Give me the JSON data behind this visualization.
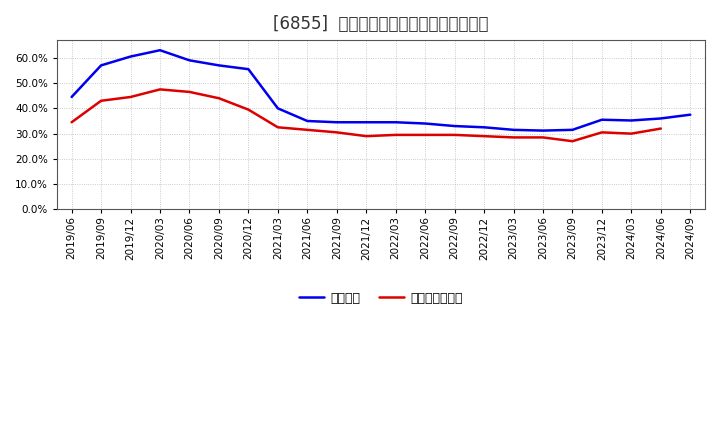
{
  "title": "[6855]  固定比率、固定長期適合率の推移",
  "series_order": [
    "固定比率",
    "固定長期適合率"
  ],
  "series": {
    "固定比率": {
      "color": "#0000EE",
      "dates": [
        "2019/06",
        "2019/09",
        "2019/12",
        "2020/03",
        "2020/06",
        "2020/09",
        "2020/12",
        "2021/03",
        "2021/06",
        "2021/09",
        "2021/12",
        "2022/03",
        "2022/06",
        "2022/09",
        "2022/12",
        "2023/03",
        "2023/06",
        "2023/09",
        "2023/12",
        "2024/03",
        "2024/06",
        "2024/09"
      ],
      "values": [
        44.5,
        57.0,
        60.5,
        63.0,
        59.0,
        57.0,
        55.5,
        40.0,
        35.0,
        34.5,
        34.5,
        34.5,
        34.0,
        33.0,
        32.5,
        31.5,
        31.2,
        31.5,
        35.5,
        35.2,
        36.0,
        37.5
      ]
    },
    "固定長期適合率": {
      "color": "#DD0000",
      "dates": [
        "2019/06",
        "2019/09",
        "2019/12",
        "2020/03",
        "2020/06",
        "2020/09",
        "2020/12",
        "2021/03",
        "2021/06",
        "2021/09",
        "2021/12",
        "2022/03",
        "2022/06",
        "2022/09",
        "2022/12",
        "2023/03",
        "2023/06",
        "2023/09",
        "2023/12",
        "2024/03",
        "2024/06"
      ],
      "values": [
        34.5,
        43.0,
        44.5,
        47.5,
        46.5,
        44.0,
        39.5,
        32.5,
        31.5,
        30.5,
        29.0,
        29.5,
        29.5,
        29.5,
        29.0,
        28.5,
        28.5,
        27.0,
        30.5,
        30.0,
        32.0
      ]
    }
  },
  "yticks": [
    0.0,
    10.0,
    20.0,
    30.0,
    40.0,
    50.0,
    60.0
  ],
  "ylim": [
    0.0,
    67.0
  ],
  "xtick_labels": [
    "2019/06",
    "2019/09",
    "2019/12",
    "2020/03",
    "2020/06",
    "2020/09",
    "2020/12",
    "2021/03",
    "2021/06",
    "2021/09",
    "2021/12",
    "2022/03",
    "2022/06",
    "2022/09",
    "2022/12",
    "2023/03",
    "2023/06",
    "2023/09",
    "2023/12",
    "2024/03",
    "2024/06",
    "2024/09"
  ],
  "background_color": "#FFFFFF",
  "plot_bg_color": "#FFFFFF",
  "grid_color": "#AAAAAA",
  "title_fontsize": 12,
  "legend_fontsize": 9,
  "tick_fontsize": 7.5
}
